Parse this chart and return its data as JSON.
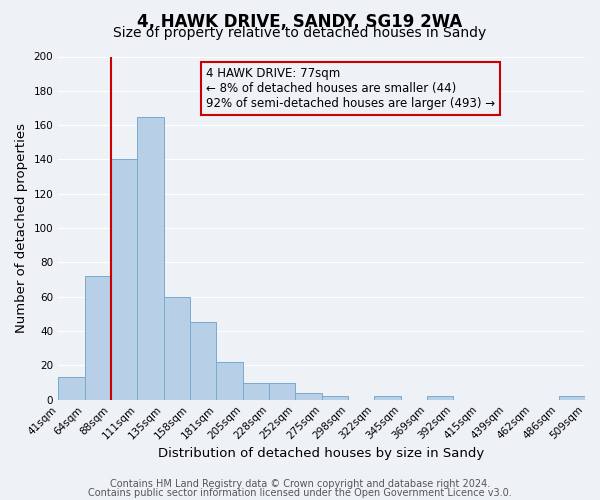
{
  "title": "4, HAWK DRIVE, SANDY, SG19 2WA",
  "subtitle": "Size of property relative to detached houses in Sandy",
  "xlabel": "Distribution of detached houses by size in Sandy",
  "ylabel": "Number of detached properties",
  "bin_labels": [
    "41sqm",
    "64sqm",
    "88sqm",
    "111sqm",
    "135sqm",
    "158sqm",
    "181sqm",
    "205sqm",
    "228sqm",
    "252sqm",
    "275sqm",
    "298sqm",
    "322sqm",
    "345sqm",
    "369sqm",
    "392sqm",
    "415sqm",
    "439sqm",
    "462sqm",
    "486sqm",
    "509sqm"
  ],
  "values": [
    13,
    72,
    140,
    165,
    60,
    45,
    22,
    10,
    10,
    4,
    2,
    0,
    2,
    0,
    2,
    0,
    0,
    0,
    0,
    2
  ],
  "bar_color": "#b8cfe8",
  "bar_edge_color": "#7aaad0",
  "red_line_color": "#cc0000",
  "annotation_box_edge_color": "#cc0000",
  "marker_label": "4 HAWK DRIVE: 77sqm",
  "annotation_line1": "← 8% of detached houses are smaller (44)",
  "annotation_line2": "92% of semi-detached houses are larger (493) →",
  "ylim": [
    0,
    200
  ],
  "yticks": [
    0,
    20,
    40,
    60,
    80,
    100,
    120,
    140,
    160,
    180,
    200
  ],
  "footer1": "Contains HM Land Registry data © Crown copyright and database right 2024.",
  "footer2": "Contains public sector information licensed under the Open Government Licence v3.0.",
  "background_color": "#eef2f7",
  "grid_color": "#ffffff",
  "title_fontsize": 12,
  "subtitle_fontsize": 10,
  "tick_fontsize": 7.5,
  "label_fontsize": 9.5,
  "footer_fontsize": 7,
  "annotation_fontsize": 8.5
}
